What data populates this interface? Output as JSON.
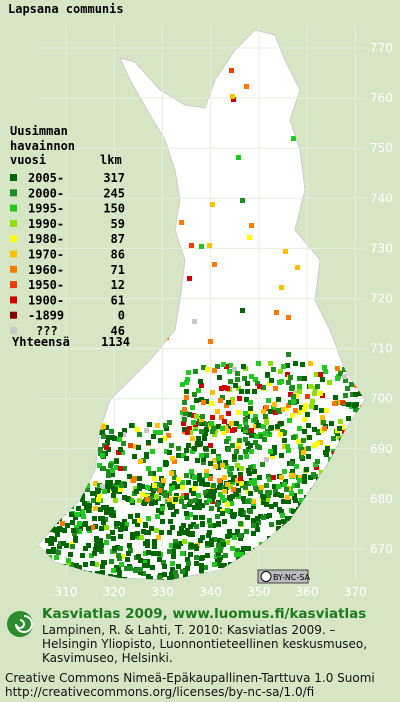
{
  "title": "Lapsana communis",
  "legend": {
    "heading": [
      "Uusimman",
      "havainnon"
    ],
    "col_year": "vuosi",
    "col_count": "lkm",
    "items": [
      {
        "label": "2005-",
        "count": 317,
        "color": "#006400"
      },
      {
        "label": "2000-",
        "count": 245,
        "color": "#1e8c1e"
      },
      {
        "label": "1995-",
        "count": 150,
        "color": "#22c822"
      },
      {
        "label": "1990-",
        "count": 59,
        "color": "#8ee000"
      },
      {
        "label": "1980-",
        "count": 87,
        "color": "#ffff00"
      },
      {
        "label": "1970-",
        "count": 86,
        "color": "#ffc000"
      },
      {
        "label": "1960-",
        "count": 71,
        "color": "#ff7a00"
      },
      {
        "label": "1950-",
        "count": 12,
        "color": "#e84000"
      },
      {
        "label": "1900-",
        "count": 61,
        "color": "#d00000"
      },
      {
        "label": "-1899",
        "count": 0,
        "color": "#800000"
      },
      {
        "label": "???",
        "count": 46,
        "color": "#c8c8c8"
      }
    ],
    "total_label": "Yhteensä",
    "total": 1134
  },
  "grid": {
    "y_labels": [
      770,
      760,
      750,
      740,
      730,
      720,
      710,
      700,
      690,
      680,
      670
    ],
    "x_labels": [
      310,
      320,
      330,
      340,
      350,
      360,
      370
    ]
  },
  "badge": "BY-NC-SA",
  "footer": {
    "site": "Kasviatlas 2009, www.luomus.fi/kasviatlas",
    "citation": [
      "Lampinen, R. & Lahti, T. 2010: Kasviatlas 2009. –",
      "Helsingin Yliopisto, Luonnontieteellinen keskusmuseo,",
      "Kasvimuseo, Helsinki."
    ],
    "license": [
      "Creative Commons Nimeä-Epäkaupallinen-Tarttuva 1.0 Suomi",
      "http://creativecommons.org/licenses/by-nc-sa/1.0/fi"
    ]
  }
}
